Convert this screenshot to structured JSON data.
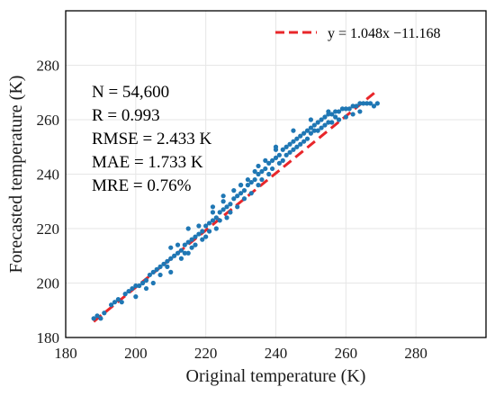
{
  "chart_data": {
    "type": "scatter",
    "xlabel": "Original temperature (K)",
    "ylabel": "Forecasted temperature (K)",
    "xlim": [
      180,
      300
    ],
    "ylim": [
      180,
      300
    ],
    "x_ticks": [
      180,
      200,
      220,
      240,
      260,
      280
    ],
    "y_ticks": [
      180,
      200,
      220,
      240,
      260,
      280
    ],
    "grid": true,
    "legend_position": "top-right",
    "colors": {
      "points": "#1f77b4",
      "fit_line": "#e8262a"
    },
    "stats": [
      "N = 54,600",
      "R = 0.993",
      "RMSE = 2.433 K",
      "MAE = 1.733 K",
      "MRE = 0.76%"
    ],
    "fit_line": {
      "label": "y = 1.048x −11.168",
      "slope": 1.048,
      "intercept": -11.168,
      "x_range": [
        188,
        269
      ]
    },
    "series": [
      {
        "points": [
          [
            188,
            187
          ],
          [
            189,
            188
          ],
          [
            190,
            187
          ],
          [
            191,
            189
          ],
          [
            193,
            192
          ],
          [
            194,
            193
          ],
          [
            195,
            194
          ],
          [
            196,
            193
          ],
          [
            197,
            196
          ],
          [
            198,
            197
          ],
          [
            199,
            198
          ],
          [
            200,
            199
          ],
          [
            200,
            195
          ],
          [
            201,
            199
          ],
          [
            202,
            200
          ],
          [
            203,
            201
          ],
          [
            203,
            198
          ],
          [
            204,
            203
          ],
          [
            205,
            204
          ],
          [
            205,
            200
          ],
          [
            206,
            205
          ],
          [
            207,
            206
          ],
          [
            207,
            203
          ],
          [
            208,
            207
          ],
          [
            209,
            208
          ],
          [
            209,
            206
          ],
          [
            210,
            209
          ],
          [
            210,
            204
          ],
          [
            211,
            210
          ],
          [
            212,
            211
          ],
          [
            212,
            214
          ],
          [
            213,
            212
          ],
          [
            213,
            209
          ],
          [
            214,
            214
          ],
          [
            214,
            211
          ],
          [
            215,
            215
          ],
          [
            215,
            211
          ],
          [
            216,
            216
          ],
          [
            216,
            213
          ],
          [
            217,
            217
          ],
          [
            217,
            214
          ],
          [
            218,
            218
          ],
          [
            218,
            221
          ],
          [
            219,
            219
          ],
          [
            219,
            216
          ],
          [
            220,
            221
          ],
          [
            220,
            217
          ],
          [
            221,
            222
          ],
          [
            221,
            219
          ],
          [
            222,
            223
          ],
          [
            222,
            226
          ],
          [
            223,
            224
          ],
          [
            223,
            220
          ],
          [
            224,
            226
          ],
          [
            224,
            223
          ],
          [
            225,
            227
          ],
          [
            225,
            230
          ],
          [
            226,
            228
          ],
          [
            226,
            224
          ],
          [
            227,
            229
          ],
          [
            227,
            226
          ],
          [
            228,
            231
          ],
          [
            228,
            234
          ],
          [
            229,
            232
          ],
          [
            229,
            228
          ],
          [
            230,
            233
          ],
          [
            230,
            236
          ],
          [
            231,
            234
          ],
          [
            231,
            231
          ],
          [
            232,
            236
          ],
          [
            232,
            238
          ],
          [
            233,
            237
          ],
          [
            233,
            233
          ],
          [
            234,
            238
          ],
          [
            234,
            241
          ],
          [
            235,
            240
          ],
          [
            235,
            236
          ],
          [
            236,
            241
          ],
          [
            236,
            238
          ],
          [
            237,
            242
          ],
          [
            237,
            245
          ],
          [
            238,
            244
          ],
          [
            238,
            240
          ],
          [
            239,
            245
          ],
          [
            239,
            242
          ],
          [
            240,
            246
          ],
          [
            240,
            249
          ],
          [
            241,
            247
          ],
          [
            241,
            244
          ],
          [
            242,
            249
          ],
          [
            242,
            245
          ],
          [
            243,
            250
          ],
          [
            243,
            247
          ],
          [
            244,
            251
          ],
          [
            244,
            248
          ],
          [
            245,
            252
          ],
          [
            245,
            249
          ],
          [
            246,
            253
          ],
          [
            246,
            250
          ],
          [
            247,
            254
          ],
          [
            247,
            251
          ],
          [
            248,
            255
          ],
          [
            248,
            252
          ],
          [
            249,
            256
          ],
          [
            249,
            253
          ],
          [
            250,
            257
          ],
          [
            250,
            255
          ],
          [
            251,
            258
          ],
          [
            251,
            256
          ],
          [
            252,
            259
          ],
          [
            252,
            256
          ],
          [
            253,
            260
          ],
          [
            253,
            257
          ],
          [
            254,
            261
          ],
          [
            254,
            258
          ],
          [
            255,
            262
          ],
          [
            255,
            259
          ],
          [
            256,
            262
          ],
          [
            256,
            259
          ],
          [
            257,
            263
          ],
          [
            257,
            261
          ],
          [
            258,
            263
          ],
          [
            258,
            260
          ],
          [
            259,
            264
          ],
          [
            260,
            264
          ],
          [
            260,
            261
          ],
          [
            261,
            264
          ],
          [
            262,
            265
          ],
          [
            262,
            262
          ],
          [
            263,
            265
          ],
          [
            264,
            266
          ],
          [
            264,
            263
          ],
          [
            265,
            266
          ],
          [
            266,
            266
          ],
          [
            267,
            266
          ],
          [
            268,
            265
          ],
          [
            269,
            266
          ],
          [
            230,
            236
          ],
          [
            235,
            243
          ],
          [
            225,
            232
          ],
          [
            240,
            250
          ],
          [
            245,
            256
          ],
          [
            222,
            228
          ],
          [
            215,
            220
          ],
          [
            210,
            213
          ],
          [
            250,
            260
          ],
          [
            255,
            263
          ]
        ]
      }
    ]
  }
}
